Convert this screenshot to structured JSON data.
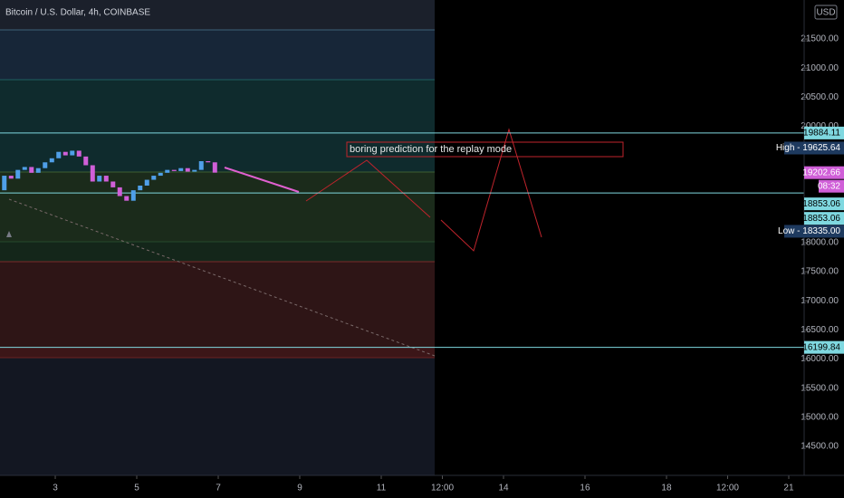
{
  "chart_data": {
    "type": "candlestick",
    "title": "Bitcoin / U.S. Dollar, 4h, COINBASE",
    "currency": "USD",
    "annotation": "boring prediction for the replay mode",
    "up_color": "#4f9fe8",
    "down_color": "#d05fd8",
    "x": [
      1.75,
      1.917,
      2.083,
      2.25,
      2.417,
      2.583,
      2.75,
      2.917,
      3.083,
      3.25,
      3.417,
      3.583,
      3.75,
      3.917,
      4.083,
      4.25,
      4.417,
      4.583,
      4.75,
      4.917,
      5.083,
      5.25,
      5.417,
      5.583,
      5.75,
      5.917,
      6.083,
      6.25,
      6.417,
      6.583,
      6.75,
      6.917
    ],
    "open": [
      18900,
      19150,
      19100,
      19250,
      19300,
      19200,
      19280,
      19380,
      19450,
      19560,
      19500,
      19580,
      19480,
      19330,
      19050,
      19150,
      19050,
      18950,
      18800,
      18720,
      18900,
      18980,
      19080,
      19150,
      19200,
      19250,
      19230,
      19280,
      19220,
      19250,
      19400,
      19380
    ],
    "high": {
      "value": 19625.64,
      "label": "High - 19625.64"
    },
    "low": {
      "value": 18335,
      "label": "Low - 18335.00"
    },
    "close": [
      19150,
      19100,
      19250,
      19300,
      19200,
      19280,
      19380,
      19450,
      19560,
      19500,
      19580,
      19480,
      19330,
      19050,
      19150,
      19050,
      18950,
      18800,
      18720,
      18900,
      18980,
      19080,
      19150,
      19200,
      19250,
      19230,
      19280,
      19220,
      19250,
      19400,
      19380,
      19202.66
    ],
    "xlim": [
      1.644,
      21.378
    ],
    "xticks": [
      3,
      5,
      7,
      9,
      11,
      {
        "value": 12.5,
        "label": "12:00"
      },
      14,
      16,
      18,
      {
        "value": 19.5,
        "label": "12:00"
      },
      21
    ],
    "ylim": [
      14000,
      22170
    ],
    "yticks": [
      {
        "value": 14500,
        "label": "14500.00"
      },
      {
        "value": 15000,
        "label": "15000.00"
      },
      {
        "value": 15500,
        "label": "15500.00"
      },
      {
        "value": 16000,
        "label": "16000.00"
      },
      {
        "value": 16500,
        "label": "16500.00"
      },
      {
        "value": 17000,
        "label": "17000.00"
      },
      {
        "value": 17500,
        "label": "17500.00"
      },
      {
        "value": 18000,
        "label": "18000.00"
      },
      {
        "value": 20000,
        "label": "20000.00"
      },
      {
        "value": 20500,
        "label": "20500.00"
      },
      {
        "value": 21000,
        "label": "21000.00"
      },
      {
        "value": 21500,
        "label": "21500.00"
      }
    ],
    "hlines": [
      19884.11,
      18853.06,
      16199.84
    ],
    "alert_price": 18853.06,
    "last_price": 19202.66,
    "countdown": "08:32"
  }
}
